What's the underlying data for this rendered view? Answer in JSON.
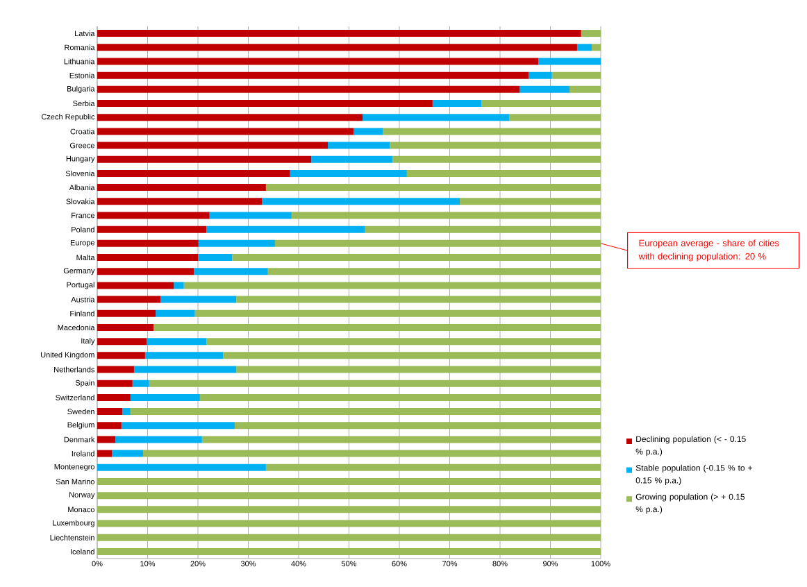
{
  "chart_data": {
    "type": "bar",
    "orientation": "horizontal",
    "stacked": true,
    "categories": [
      "Latvia",
      "Romania",
      "Lithuania",
      "Estonia",
      "Bulgaria",
      "Serbia",
      "Czech Republic",
      "Croatia",
      "Greece",
      "Hungary",
      "Slovenia",
      "Albania",
      "Slovakia",
      "France",
      "Poland",
      "Europe",
      "Malta",
      "Germany",
      "Portugal",
      "Austria",
      "Finland",
      "Macedonia",
      "Italy",
      "United Kingdom",
      "Netherlands",
      "Spain",
      "Switzerland",
      "Sweden",
      "Belgium",
      "Denmark",
      "Ireland",
      "Montenegro",
      "San Marino",
      "Norway",
      "Monaco",
      "Luxembourg",
      "Liechtenstein",
      "Iceland"
    ],
    "series": [
      {
        "name": "Declining population (< - 0.15 % p.a.)",
        "color": "#c00000",
        "values": [
          96.1,
          95.3,
          87.6,
          85.7,
          83.9,
          66.6,
          52.7,
          50.9,
          45.8,
          42.5,
          38.3,
          33.5,
          32.7,
          22.3,
          21.7,
          20.1,
          20.0,
          19.2,
          15.2,
          12.6,
          11.6,
          11.2,
          9.8,
          9.5,
          7.3,
          7.0,
          6.6,
          5.0,
          4.8,
          3.6,
          2.9,
          0,
          0,
          0,
          0,
          0,
          0,
          0
        ]
      },
      {
        "name": "Stable population (-0.15 % to + 0.15 % p.a.)",
        "color": "#00b0f0",
        "values": [
          0,
          2.9,
          12.4,
          4.6,
          9.9,
          9.7,
          29.1,
          5.8,
          12.3,
          16.1,
          23.2,
          0,
          39.3,
          16.3,
          31.5,
          15.2,
          6.8,
          14.7,
          2.0,
          15.0,
          7.8,
          0,
          11.9,
          15.5,
          20.3,
          3.3,
          13.8,
          1.6,
          22.5,
          17.2,
          6.2,
          33.5,
          0,
          0,
          0,
          0,
          0,
          0
        ]
      },
      {
        "name": "Growing population (> + 0.15 % p.a.)",
        "color": "#9bbb59",
        "values": [
          3.9,
          1.8,
          0,
          9.7,
          6.2,
          23.7,
          18.2,
          43.3,
          41.9,
          41.4,
          38.5,
          66.5,
          28.0,
          61.4,
          46.8,
          64.7,
          73.2,
          66.1,
          82.8,
          72.4,
          80.6,
          88.8,
          78.3,
          75.0,
          72.4,
          89.7,
          79.6,
          93.4,
          72.7,
          79.2,
          90.9,
          66.5,
          100,
          100,
          100,
          100,
          100,
          100
        ]
      }
    ],
    "xlim": [
      0,
      100
    ],
    "xticks": [
      {
        "value": 0,
        "label": "0%"
      },
      {
        "value": 10,
        "label": "10%"
      },
      {
        "value": 20,
        "label": "20%"
      },
      {
        "value": 30,
        "label": "30%"
      },
      {
        "value": 40,
        "label": "40%"
      },
      {
        "value": 50,
        "label": "50%"
      },
      {
        "value": 60,
        "label": "60%"
      },
      {
        "value": 70,
        "label": "70%"
      },
      {
        "value": 80,
        "label": "80%"
      },
      {
        "value": 90,
        "label": "90%"
      },
      {
        "value": 100,
        "label": "100%"
      }
    ],
    "grid": "x",
    "legend": "bottom right",
    "annotations": [
      {
        "text": "European average - share of cities with declining population: 20 %",
        "x": 100,
        "y": "Europe"
      }
    ]
  }
}
